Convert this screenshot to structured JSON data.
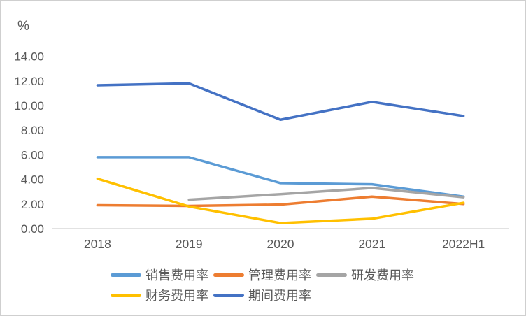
{
  "window": {
    "background": "#FFFFFF",
    "border_color": "#CFCFCF"
  },
  "chart_data": {
    "type": "line",
    "title": "",
    "unit_label": "%",
    "xlabel": "",
    "ylabel": "%",
    "categories": [
      "2018",
      "2019",
      "2020",
      "2021",
      "2022H1"
    ],
    "y_ticks": [
      "0.00",
      "2.00",
      "4.00",
      "6.00",
      "8.00",
      "10.00",
      "12.00",
      "14.00"
    ],
    "ylim": [
      0,
      14
    ],
    "grid": false,
    "legend_position": "bottom",
    "axis_color": "#D9D9D9",
    "text_color": "#595959",
    "series": [
      {
        "name": "销售费用率",
        "color": "#5B9BD5",
        "values": [
          5.8,
          5.8,
          3.7,
          3.6,
          2.6
        ]
      },
      {
        "name": "管理费用率",
        "color": "#ED7D31",
        "values": [
          1.9,
          1.85,
          1.95,
          2.6,
          2.0
        ]
      },
      {
        "name": "研发费用率",
        "color": "#A5A5A5",
        "values": [
          null,
          2.35,
          2.8,
          3.3,
          2.55
        ]
      },
      {
        "name": "财务费用率",
        "color": "#FFC000",
        "values": [
          4.05,
          1.8,
          0.45,
          0.8,
          2.1
        ]
      },
      {
        "name": "期间费用率",
        "color": "#4472C4",
        "values": [
          11.65,
          11.8,
          8.85,
          10.3,
          9.15
        ]
      }
    ],
    "legend_rows": [
      [
        0,
        1,
        2
      ],
      [
        3,
        4
      ]
    ]
  }
}
